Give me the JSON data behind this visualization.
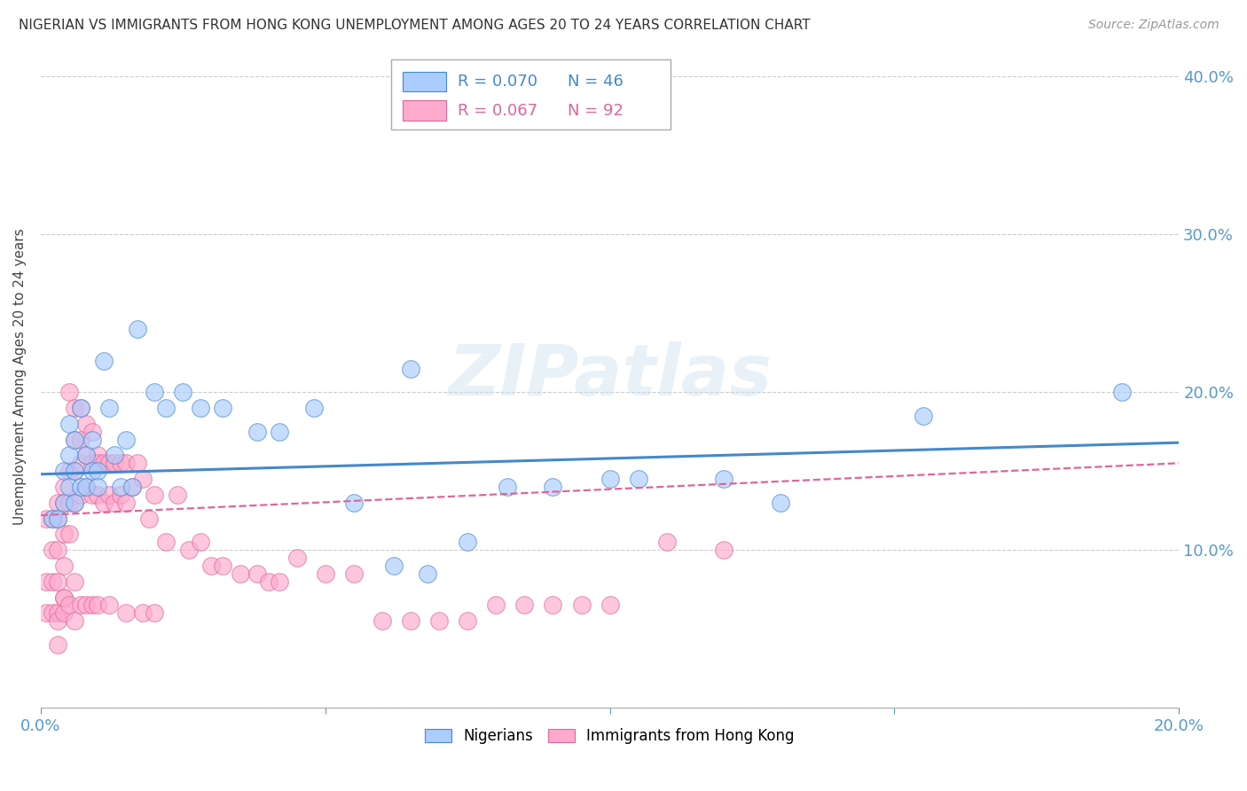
{
  "title": "NIGERIAN VS IMMIGRANTS FROM HONG KONG UNEMPLOYMENT AMONG AGES 20 TO 24 YEARS CORRELATION CHART",
  "source": "Source: ZipAtlas.com",
  "ylabel": "Unemployment Among Ages 20 to 24 years",
  "xlim": [
    0.0,
    0.2
  ],
  "ylim": [
    0.0,
    0.42
  ],
  "xticks": [
    0.0,
    0.05,
    0.1,
    0.15,
    0.2
  ],
  "yticks": [
    0.0,
    0.1,
    0.2,
    0.3,
    0.4
  ],
  "ytick_labels": [
    "",
    "10.0%",
    "20.0%",
    "30.0%",
    "40.0%"
  ],
  "xtick_labels": [
    "0.0%",
    "",
    "",
    "",
    "20.0%"
  ],
  "legend_nigerians": "Nigerians",
  "legend_hk": "Immigrants from Hong Kong",
  "R_nigerians": 0.07,
  "N_nigerians": 46,
  "R_hk": 0.067,
  "N_hk": 92,
  "color_nigerians": "#aaccff",
  "color_nigerians_line": "#4488cc",
  "color_hk": "#ffaacc",
  "color_hk_line": "#dd6699",
  "watermark": "ZIPatlas",
  "nig_line_start_y": 0.148,
  "nig_line_end_y": 0.168,
  "hk_line_start_y": 0.122,
  "hk_line_end_y": 0.155,
  "nigerians_x": [
    0.002,
    0.003,
    0.004,
    0.004,
    0.005,
    0.005,
    0.005,
    0.006,
    0.006,
    0.006,
    0.007,
    0.007,
    0.008,
    0.008,
    0.009,
    0.009,
    0.01,
    0.01,
    0.011,
    0.012,
    0.013,
    0.014,
    0.015,
    0.016,
    0.017,
    0.02,
    0.022,
    0.025,
    0.028,
    0.032,
    0.038,
    0.042,
    0.048,
    0.055,
    0.062,
    0.068,
    0.075,
    0.082,
    0.09,
    0.1,
    0.12,
    0.13,
    0.065,
    0.105,
    0.155,
    0.19
  ],
  "nigerians_y": [
    0.12,
    0.12,
    0.13,
    0.15,
    0.14,
    0.16,
    0.18,
    0.13,
    0.15,
    0.17,
    0.14,
    0.19,
    0.14,
    0.16,
    0.15,
    0.17,
    0.15,
    0.14,
    0.22,
    0.19,
    0.16,
    0.14,
    0.17,
    0.14,
    0.24,
    0.2,
    0.19,
    0.2,
    0.19,
    0.19,
    0.175,
    0.175,
    0.19,
    0.13,
    0.09,
    0.085,
    0.105,
    0.14,
    0.14,
    0.145,
    0.145,
    0.13,
    0.215,
    0.145,
    0.185,
    0.2
  ],
  "hk_x": [
    0.001,
    0.001,
    0.001,
    0.002,
    0.002,
    0.002,
    0.002,
    0.003,
    0.003,
    0.003,
    0.003,
    0.003,
    0.003,
    0.004,
    0.004,
    0.004,
    0.004,
    0.004,
    0.005,
    0.005,
    0.005,
    0.005,
    0.006,
    0.006,
    0.006,
    0.006,
    0.007,
    0.007,
    0.007,
    0.007,
    0.008,
    0.008,
    0.008,
    0.009,
    0.009,
    0.009,
    0.01,
    0.01,
    0.01,
    0.011,
    0.011,
    0.012,
    0.012,
    0.013,
    0.013,
    0.014,
    0.014,
    0.015,
    0.015,
    0.016,
    0.017,
    0.018,
    0.019,
    0.02,
    0.022,
    0.024,
    0.026,
    0.028,
    0.03,
    0.032,
    0.035,
    0.038,
    0.04,
    0.042,
    0.045,
    0.05,
    0.055,
    0.06,
    0.065,
    0.07,
    0.075,
    0.08,
    0.085,
    0.09,
    0.095,
    0.1,
    0.11,
    0.12,
    0.003,
    0.004,
    0.004,
    0.005,
    0.006,
    0.006,
    0.007,
    0.008,
    0.009,
    0.01,
    0.012,
    0.015,
    0.018,
    0.02
  ],
  "hk_y": [
    0.12,
    0.08,
    0.06,
    0.12,
    0.1,
    0.08,
    0.06,
    0.13,
    0.12,
    0.1,
    0.08,
    0.06,
    0.04,
    0.14,
    0.13,
    0.11,
    0.09,
    0.07,
    0.2,
    0.15,
    0.13,
    0.11,
    0.19,
    0.17,
    0.15,
    0.13,
    0.19,
    0.17,
    0.155,
    0.135,
    0.18,
    0.16,
    0.14,
    0.175,
    0.155,
    0.135,
    0.16,
    0.155,
    0.135,
    0.155,
    0.13,
    0.155,
    0.135,
    0.155,
    0.13,
    0.155,
    0.135,
    0.155,
    0.13,
    0.14,
    0.155,
    0.145,
    0.12,
    0.135,
    0.105,
    0.135,
    0.1,
    0.105,
    0.09,
    0.09,
    0.085,
    0.085,
    0.08,
    0.08,
    0.095,
    0.085,
    0.085,
    0.055,
    0.055,
    0.055,
    0.055,
    0.065,
    0.065,
    0.065,
    0.065,
    0.065,
    0.105,
    0.1,
    0.055,
    0.06,
    0.07,
    0.065,
    0.055,
    0.08,
    0.065,
    0.065,
    0.065,
    0.065,
    0.065,
    0.06,
    0.06,
    0.06
  ]
}
